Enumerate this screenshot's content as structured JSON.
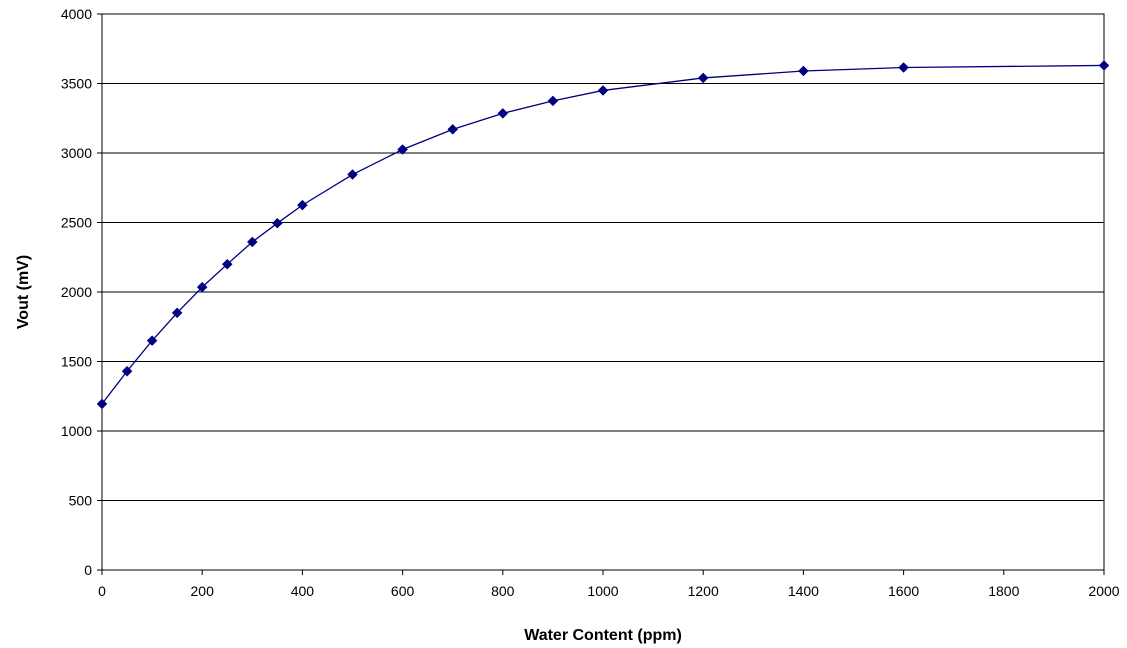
{
  "chart_data": {
    "type": "line",
    "title": "",
    "xlabel": "Water Content (ppm)",
    "ylabel": "Vout (mV)",
    "xlim": [
      0,
      2000
    ],
    "ylim": [
      0,
      4000
    ],
    "x_ticks": [
      0,
      200,
      400,
      600,
      800,
      1000,
      1200,
      1400,
      1600,
      1800,
      2000
    ],
    "y_ticks": [
      0,
      500,
      1000,
      1500,
      2000,
      2500,
      3000,
      3500,
      4000
    ],
    "grid": "horizontal",
    "legend": "none",
    "series": [
      {
        "color": "#000080",
        "marker": "diamond",
        "x": [
          0,
          50,
          100,
          150,
          200,
          250,
          300,
          350,
          400,
          500,
          600,
          700,
          800,
          900,
          1000,
          1200,
          1400,
          1600,
          2000
        ],
        "y": [
          1195,
          1430,
          1650,
          1850,
          2035,
          2200,
          2360,
          2495,
          2625,
          2845,
          3025,
          3170,
          3285,
          3375,
          3450,
          3540,
          3590,
          3615,
          3630
        ]
      }
    ]
  }
}
